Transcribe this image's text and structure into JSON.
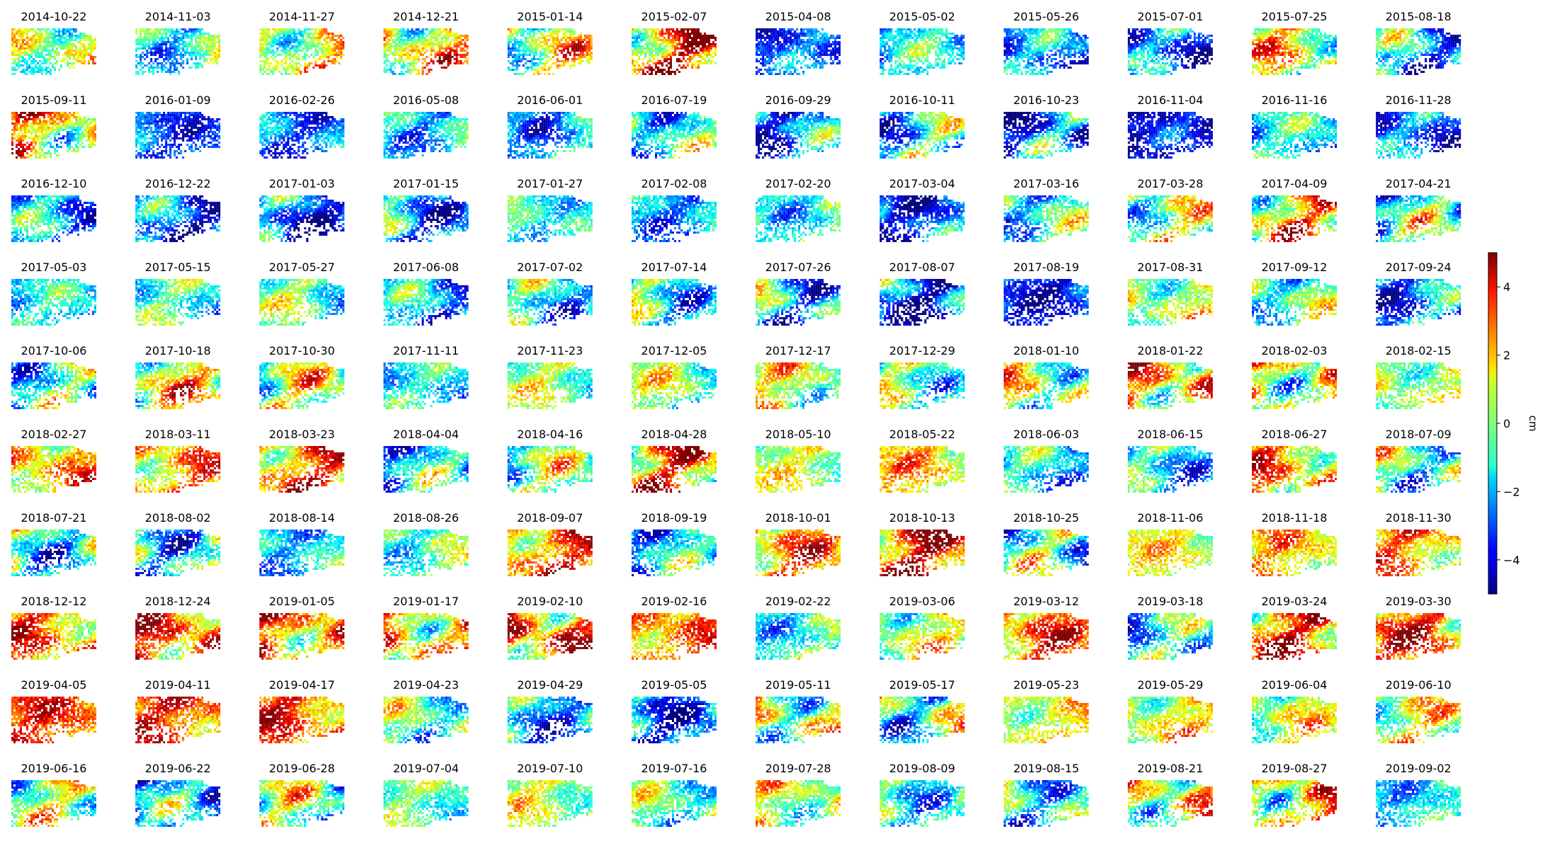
{
  "chart_data": {
    "type": "heatmap",
    "layout": {
      "rows": 10,
      "cols": 12
    },
    "dates": [
      "2014-10-22",
      "2014-11-03",
      "2014-11-27",
      "2014-12-21",
      "2015-01-14",
      "2015-02-07",
      "2015-04-08",
      "2015-05-02",
      "2015-05-26",
      "2015-07-01",
      "2015-07-25",
      "2015-08-18",
      "2015-09-11",
      "2016-01-09",
      "2016-02-26",
      "2016-05-08",
      "2016-06-01",
      "2016-07-19",
      "2016-09-29",
      "2016-10-11",
      "2016-10-23",
      "2016-11-04",
      "2016-11-16",
      "2016-11-28",
      "2016-12-10",
      "2016-12-22",
      "2017-01-03",
      "2017-01-15",
      "2017-01-27",
      "2017-02-08",
      "2017-02-20",
      "2017-03-04",
      "2017-03-16",
      "2017-03-28",
      "2017-04-09",
      "2017-04-21",
      "2017-05-03",
      "2017-05-15",
      "2017-05-27",
      "2017-06-08",
      "2017-07-02",
      "2017-07-14",
      "2017-07-26",
      "2017-08-07",
      "2017-08-19",
      "2017-08-31",
      "2017-09-12",
      "2017-09-24",
      "2017-10-06",
      "2017-10-18",
      "2017-10-30",
      "2017-11-11",
      "2017-11-23",
      "2017-12-05",
      "2017-12-17",
      "2017-12-29",
      "2018-01-10",
      "2018-01-22",
      "2018-02-03",
      "2018-02-15",
      "2018-02-27",
      "2018-03-11",
      "2018-03-23",
      "2018-04-04",
      "2018-04-16",
      "2018-04-28",
      "2018-05-10",
      "2018-05-22",
      "2018-06-03",
      "2018-06-15",
      "2018-06-27",
      "2018-07-09",
      "2018-07-21",
      "2018-08-02",
      "2018-08-14",
      "2018-08-26",
      "2018-09-07",
      "2018-09-19",
      "2018-10-01",
      "2018-10-13",
      "2018-10-25",
      "2018-11-06",
      "2018-11-18",
      "2018-11-30",
      "2018-12-12",
      "2018-12-24",
      "2019-01-05",
      "2019-01-17",
      "2019-02-10",
      "2019-02-16",
      "2019-02-22",
      "2019-03-06",
      "2019-03-12",
      "2019-03-18",
      "2019-03-24",
      "2019-03-30",
      "2019-04-05",
      "2019-04-11",
      "2019-04-17",
      "2019-04-23",
      "2019-04-29",
      "2019-05-05",
      "2019-05-11",
      "2019-05-17",
      "2019-05-23",
      "2019-05-29",
      "2019-06-04",
      "2019-06-10",
      "2019-06-16",
      "2019-06-22",
      "2019-06-28",
      "2019-07-04",
      "2019-07-10",
      "2019-07-16",
      "2019-07-28",
      "2019-08-09",
      "2019-08-15",
      "2019-08-21",
      "2019-08-27",
      "2019-09-02"
    ],
    "approx_mean_displacement_cm": [
      0.5,
      -1.0,
      1.0,
      1.5,
      0.5,
      2.5,
      -3.0,
      -1.5,
      -2.5,
      -3.0,
      1.0,
      -2.0,
      1.5,
      -3.0,
      -2.5,
      -1.5,
      -2.0,
      -1.0,
      -2.5,
      -1.5,
      -3.0,
      -4.0,
      -1.5,
      -3.0,
      -2.0,
      -3.0,
      -3.0,
      -2.0,
      -1.0,
      -2.0,
      -1.0,
      -3.0,
      -1.0,
      0.0,
      1.5,
      -1.0,
      -1.5,
      -1.0,
      -0.5,
      -2.0,
      -1.5,
      -1.0,
      -1.5,
      -3.0,
      -3.5,
      0.5,
      -0.5,
      -2.5,
      -1.0,
      1.0,
      0.0,
      -1.5,
      0.0,
      0.0,
      0.5,
      -0.5,
      0.5,
      2.0,
      1.0,
      0.5,
      2.0,
      2.0,
      2.5,
      -1.5,
      -0.5,
      2.0,
      0.5,
      1.5,
      -1.5,
      -1.5,
      2.0,
      -0.5,
      -1.0,
      -1.0,
      -1.5,
      -0.5,
      2.5,
      -1.5,
      2.0,
      3.0,
      -1.0,
      1.0,
      1.5,
      2.0,
      2.5,
      3.0,
      2.5,
      2.0,
      3.0,
      2.5,
      -1.0,
      0.5,
      2.5,
      -1.5,
      2.5,
      2.5,
      3.0,
      3.0,
      3.0,
      -0.5,
      -2.0,
      -2.5,
      0.5,
      -0.5,
      1.0,
      1.0,
      0.5,
      0.5,
      0.0,
      -2.0,
      -0.5,
      -0.5,
      0.5,
      -0.5,
      0.5,
      -1.0,
      -1.0,
      1.0,
      1.5,
      -1.5
    ],
    "colorbar": {
      "colormap": "jet",
      "vmin": -5,
      "vmax": 5,
      "ticks": [
        "4",
        "2",
        "0",
        "−2",
        "−4"
      ],
      "label": "cm"
    }
  }
}
